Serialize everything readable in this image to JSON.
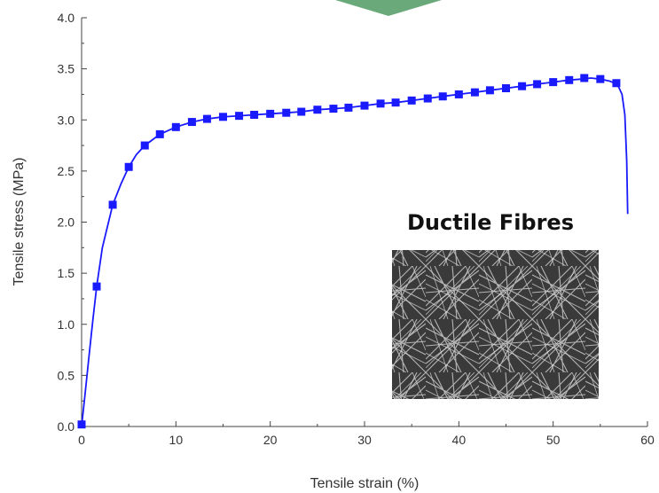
{
  "chart_data": {
    "type": "line",
    "xlabel": "Tensile strain (%)",
    "ylabel": "Tensile stress (MPa)",
    "xlim": [
      0,
      60
    ],
    "ylim": [
      0,
      4.0
    ],
    "x_ticks": [
      "0",
      "10",
      "20",
      "30",
      "40",
      "50",
      "60"
    ],
    "y_ticks": [
      "0.0",
      "0.5",
      "1.0",
      "1.5",
      "2.0",
      "2.5",
      "3.0",
      "3.5",
      "4.0"
    ],
    "grid": false,
    "annotation": "Ductile Fibres",
    "series": [
      {
        "color": "#1a1aff",
        "curve": [
          [
            0,
            0
          ],
          [
            0.4,
            0.35
          ],
          [
            0.8,
            0.7
          ],
          [
            1.2,
            1.05
          ],
          [
            1.6,
            1.37
          ],
          [
            2.2,
            1.75
          ],
          [
            3.3,
            2.17
          ],
          [
            4.2,
            2.38
          ],
          [
            5.0,
            2.54
          ],
          [
            5.8,
            2.66
          ],
          [
            6.7,
            2.75
          ],
          [
            8.3,
            2.86
          ],
          [
            10.0,
            2.93
          ],
          [
            11.7,
            2.98
          ],
          [
            13.3,
            3.01
          ],
          [
            15.0,
            3.03
          ],
          [
            16.7,
            3.04
          ],
          [
            18.3,
            3.05
          ],
          [
            20.0,
            3.06
          ],
          [
            21.7,
            3.07
          ],
          [
            23.3,
            3.08
          ],
          [
            25.0,
            3.1
          ],
          [
            26.7,
            3.11
          ],
          [
            28.3,
            3.12
          ],
          [
            30.0,
            3.14
          ],
          [
            31.7,
            3.16
          ],
          [
            33.3,
            3.17
          ],
          [
            35.0,
            3.19
          ],
          [
            36.7,
            3.21
          ],
          [
            38.3,
            3.23
          ],
          [
            40.0,
            3.25
          ],
          [
            41.7,
            3.27
          ],
          [
            43.3,
            3.29
          ],
          [
            45.0,
            3.31
          ],
          [
            46.7,
            3.33
          ],
          [
            48.3,
            3.35
          ],
          [
            50.0,
            3.37
          ],
          [
            51.7,
            3.39
          ],
          [
            53.0,
            3.4
          ],
          [
            54.0,
            3.41
          ],
          [
            55.0,
            3.4
          ],
          [
            56.0,
            3.38
          ],
          [
            56.8,
            3.35
          ],
          [
            57.3,
            3.25
          ],
          [
            57.6,
            3.05
          ],
          [
            57.8,
            2.6
          ],
          [
            57.9,
            2.08
          ]
        ],
        "markers": [
          [
            0,
            0.02
          ],
          [
            1.6,
            1.37
          ],
          [
            3.3,
            2.17
          ],
          [
            5.0,
            2.54
          ],
          [
            6.7,
            2.75
          ],
          [
            8.3,
            2.86
          ],
          [
            10.0,
            2.93
          ],
          [
            11.7,
            2.98
          ],
          [
            13.3,
            3.01
          ],
          [
            15.0,
            3.03
          ],
          [
            16.7,
            3.04
          ],
          [
            18.3,
            3.05
          ],
          [
            20.0,
            3.06
          ],
          [
            21.7,
            3.07
          ],
          [
            23.3,
            3.08
          ],
          [
            25.0,
            3.1
          ],
          [
            26.7,
            3.11
          ],
          [
            28.3,
            3.12
          ],
          [
            30.0,
            3.14
          ],
          [
            31.7,
            3.16
          ],
          [
            33.3,
            3.17
          ],
          [
            35.0,
            3.19
          ],
          [
            36.7,
            3.21
          ],
          [
            38.3,
            3.23
          ],
          [
            40.0,
            3.25
          ],
          [
            41.7,
            3.27
          ],
          [
            43.3,
            3.29
          ],
          [
            45.0,
            3.31
          ],
          [
            46.7,
            3.33
          ],
          [
            48.3,
            3.35
          ],
          [
            50.0,
            3.37
          ],
          [
            51.7,
            3.39
          ],
          [
            53.3,
            3.41
          ],
          [
            55.0,
            3.4
          ],
          [
            56.7,
            3.36
          ]
        ]
      }
    ]
  },
  "decor": {
    "top_arrow_color": "#6aaa7a",
    "inset_image": "ductile-fibres-sem-image"
  }
}
